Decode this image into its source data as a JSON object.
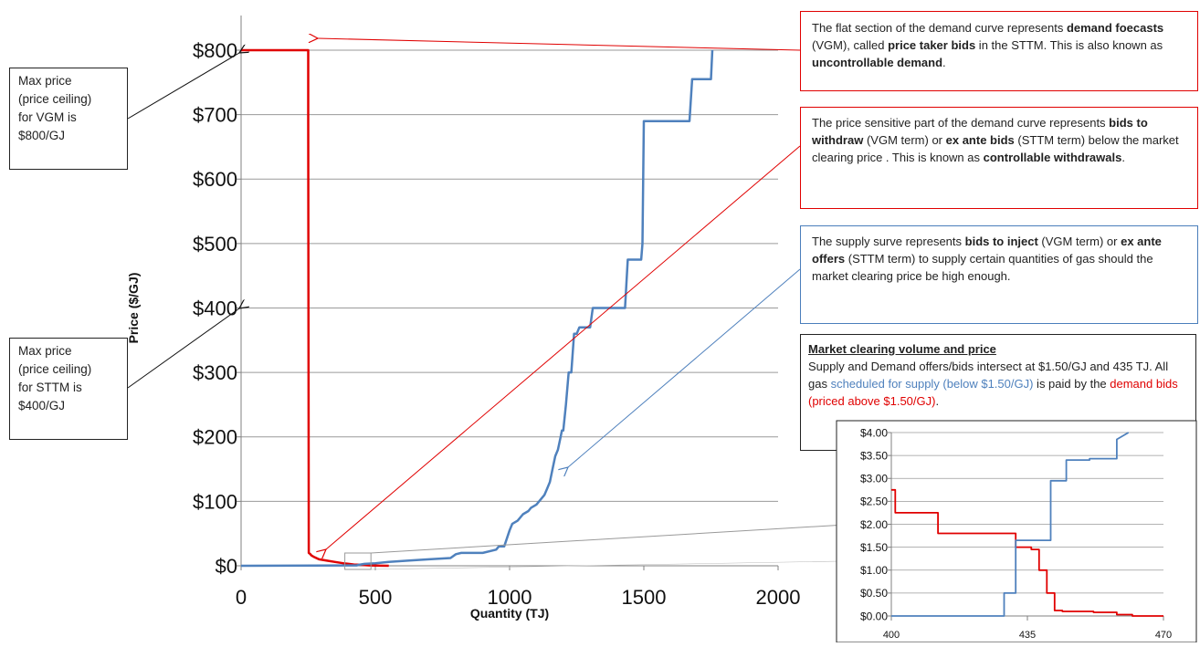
{
  "chart_data": [
    {
      "type": "line",
      "title": "",
      "xlabel": "Quantity (TJ)",
      "ylabel": "Price ($/GJ)",
      "xlim": [
        0,
        2000
      ],
      "ylim": [
        0,
        800
      ],
      "x_ticks": [
        "0",
        "500",
        "1000",
        "1500",
        "2000"
      ],
      "y_ticks": [
        "$0",
        "$100",
        "$200",
        "$300",
        "$400",
        "$500",
        "$600",
        "$700",
        "$800"
      ],
      "grid": "horizontal",
      "series": [
        {
          "color": "#e00000",
          "x": [
            0,
            250,
            250,
            252,
            258,
            262,
            270,
            290,
            320,
            350,
            380,
            400,
            420,
            440,
            460,
            480,
            500,
            520,
            550
          ],
          "y": [
            800,
            800,
            690,
            20,
            18,
            16,
            14,
            10,
            8,
            6,
            4,
            3,
            2,
            1.5,
            1,
            0.5,
            0.3,
            0.2,
            0
          ]
        },
        {
          "color": "#4f81bd",
          "x": [
            0,
            430,
            440,
            460,
            500,
            550,
            620,
            700,
            780,
            800,
            820,
            900,
            950,
            960,
            980,
            1000,
            1010,
            1030,
            1050,
            1070,
            1080,
            1100,
            1110,
            1130,
            1140,
            1150,
            1160,
            1170,
            1180,
            1190,
            1195,
            1200,
            1210,
            1220,
            1230,
            1240,
            1250,
            1260,
            1300,
            1310,
            1430,
            1440,
            1490,
            1495,
            1500,
            1670,
            1680,
            1750,
            1755
          ],
          "y": [
            0,
            0.5,
            1.5,
            3,
            4,
            6,
            8,
            10,
            12,
            18,
            20,
            20,
            25,
            30,
            30,
            55,
            65,
            70,
            80,
            85,
            90,
            95,
            100,
            110,
            120,
            130,
            150,
            170,
            180,
            200,
            210,
            210,
            250,
            300,
            300,
            360,
            360,
            370,
            370,
            400,
            400,
            475,
            475,
            500,
            690,
            690,
            755,
            755,
            800
          ]
        }
      ],
      "highlight_box": {
        "x": [
          400,
          470
        ],
        "y": [
          0,
          4
        ]
      }
    },
    {
      "type": "line",
      "title": "",
      "xlabel": "",
      "ylabel": "",
      "xlim": [
        400,
        470
      ],
      "ylim": [
        0,
        4
      ],
      "x_ticks": [
        "400",
        "435",
        "470"
      ],
      "y_ticks": [
        "$0.00",
        "$0.50",
        "$1.00",
        "$1.50",
        "$2.00",
        "$2.50",
        "$3.00",
        "$3.50",
        "$4.00"
      ],
      "grid": "horizontal",
      "series": [
        {
          "color": "#e00000",
          "x": [
            400,
            401,
            401,
            412,
            412,
            432,
            432,
            436,
            436,
            438,
            438,
            440,
            440,
            442,
            442,
            444,
            444,
            452,
            452,
            458,
            458,
            462,
            462,
            470
          ],
          "y": [
            2.75,
            2.75,
            2.25,
            2.25,
            1.8,
            1.8,
            1.5,
            1.5,
            1.45,
            1.45,
            1.0,
            1.0,
            0.5,
            0.5,
            0.12,
            0.12,
            0.1,
            0.1,
            0.08,
            0.08,
            0.03,
            0.03,
            0.0,
            0.0
          ]
        },
        {
          "color": "#4f81bd",
          "x": [
            400,
            429,
            429,
            432,
            432,
            434,
            434,
            441,
            441,
            445,
            445,
            451,
            451,
            458,
            458,
            461
          ],
          "y": [
            0,
            0,
            0.5,
            0.5,
            1.65,
            1.65,
            1.65,
            1.65,
            2.95,
            2.95,
            3.4,
            3.4,
            3.43,
            3.43,
            3.85,
            4.0
          ]
        }
      ]
    }
  ],
  "annotations": {
    "vgm_max": [
      "Max price",
      "(price ceiling)",
      "for VGM is",
      "$800/GJ"
    ],
    "sttm_max": [
      "Max price",
      "(price ceiling)",
      "for STTM is",
      "$400/GJ"
    ],
    "flat": {
      "p1": "The flat section of the demand curve represents",
      "b1": "demand foecasts",
      "p2": " (VGM), called ",
      "b2": "price taker bids",
      "p3": " in the STTM. This is also known as ",
      "b3": "uncontrollable demand",
      "p4": "."
    },
    "sensitive": {
      "p1": "The price sensitive part of the demand curve represents ",
      "b1": "bids to withdraw",
      "p2": " (VGM term) or ",
      "b2": "ex ante bids",
      "p3": " (STTM term) below the market clearing price . This is known as ",
      "b3": "controllable withdrawals",
      "p4": "."
    },
    "supply": {
      "p1": "The supply surve represents ",
      "b1": "bids to inject",
      "p2": " (VGM term) or ",
      "b2": "ex ante offers",
      "p3": " (STTM term) to supply certain quantities of gas should the market clearing price be high enough."
    },
    "market": {
      "title": "Market clearing volume and price",
      "p1": "Supply and Demand offers/bids intersect at $1.50/GJ and 435 TJ. All gas ",
      "blue": "scheduled for supply (below $1.50/GJ)",
      "p2": " is paid by the  ",
      "red": "demand bids (priced above $1.50/GJ)",
      "p3": "."
    }
  },
  "colors": {
    "demand": "#e00000",
    "supply": "#4f81bd",
    "grid": "#9a9a9a",
    "axis": "#808080"
  }
}
